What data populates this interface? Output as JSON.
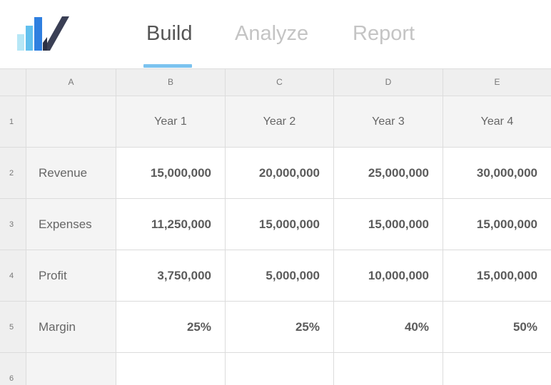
{
  "tabs": [
    {
      "label": "Build",
      "active": true
    },
    {
      "label": "Analyze",
      "active": false
    },
    {
      "label": "Report",
      "active": false
    }
  ],
  "logo": {
    "icon": "bar-chart-check-logo",
    "colors": [
      "#b6e7f6",
      "#3d9ee8",
      "#2f6fd8",
      "#3a3f55"
    ]
  },
  "accent_color": "#7cc3ef",
  "sheet": {
    "columns": [
      "A",
      "B",
      "C",
      "D",
      "E"
    ],
    "rows": [
      "1",
      "2",
      "3",
      "4",
      "5",
      "6"
    ],
    "cells": [
      [
        "",
        "Year 1",
        "Year 2",
        "Year 3",
        "Year 4"
      ],
      [
        "Revenue",
        "15,000,000",
        "20,000,000",
        "25,000,000",
        "30,000,000"
      ],
      [
        "Expenses",
        "11,250,000",
        "15,000,000",
        "15,000,000",
        "15,000,000"
      ],
      [
        "Profit",
        "3,750,000",
        "5,000,000",
        "10,000,000",
        "15,000,000"
      ],
      [
        "Margin",
        "25%",
        "25%",
        "40%",
        "50%"
      ],
      [
        "",
        "",
        "",
        "",
        ""
      ]
    ]
  }
}
